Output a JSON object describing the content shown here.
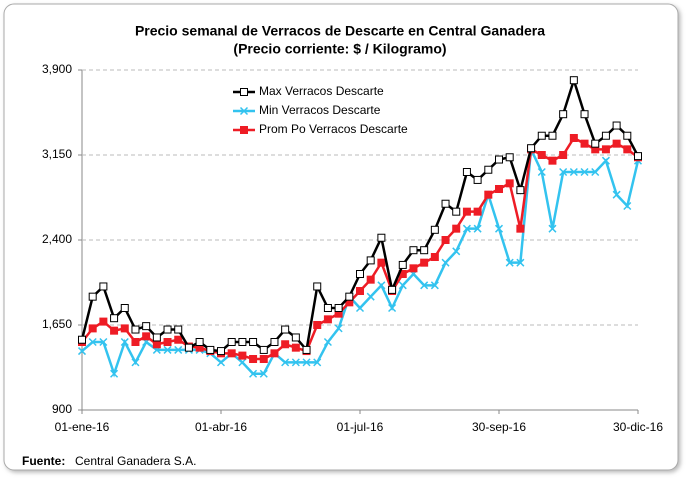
{
  "chart_data": {
    "type": "line",
    "title": "Precio semanal de Verracos de Descarte en Central Ganadera",
    "subtitle": "(Precio corriente: $ / Kilogramo)",
    "source_label": "Fuente:",
    "source": "Central Ganadera S.A.",
    "categories": [
      "01-ene-16",
      null,
      null,
      null,
      null,
      null,
      null,
      null,
      null,
      null,
      null,
      null,
      null,
      "01-abr-16",
      null,
      null,
      null,
      null,
      null,
      null,
      null,
      null,
      null,
      null,
      null,
      null,
      "01-jul-16",
      null,
      null,
      null,
      null,
      null,
      null,
      null,
      null,
      null,
      null,
      null,
      null,
      "30-sep-16",
      null,
      null,
      null,
      null,
      null,
      null,
      null,
      null,
      null,
      null,
      null,
      null,
      "30-dic-16"
    ],
    "series": [
      {
        "name": "Max Verracos Descarte",
        "color": "#000000",
        "marker": "square-open",
        "values": [
          1520,
          1900,
          1990,
          1710,
          1800,
          1610,
          1640,
          1540,
          1610,
          1610,
          1450,
          1500,
          1430,
          1420,
          1500,
          1500,
          1500,
          1430,
          1500,
          1610,
          1540,
          1430,
          1990,
          1800,
          1800,
          1900,
          2100,
          2220,
          2420,
          1960,
          2180,
          2310,
          2310,
          2490,
          2720,
          2650,
          3000,
          2930,
          3020,
          3110,
          3130,
          2840,
          3210,
          3320,
          3320,
          3510,
          3810,
          3510,
          3250,
          3320,
          3410,
          3320,
          3140
        ]
      },
      {
        "name": "Min Verracos Descarte",
        "color": "#33c3ef",
        "marker": "x",
        "values": [
          1420,
          1500,
          1500,
          1220,
          1500,
          1320,
          1500,
          1430,
          1430,
          1430,
          1430,
          1430,
          1400,
          1320,
          1400,
          1320,
          1220,
          1220,
          1400,
          1320,
          1320,
          1320,
          1320,
          1500,
          1620,
          1900,
          1800,
          1900,
          2000,
          1800,
          2000,
          2100,
          2000,
          2000,
          2200,
          2300,
          2500,
          2500,
          2800,
          2500,
          2200,
          2200,
          3200,
          3000,
          2500,
          3000,
          3000,
          3000,
          3000,
          3100,
          2800,
          2700,
          3100
        ]
      },
      {
        "name": "Prom Po Verracos Descarte",
        "color": "#ee1c25",
        "marker": "square",
        "values": [
          1500,
          1620,
          1680,
          1600,
          1620,
          1500,
          1550,
          1480,
          1500,
          1520,
          1460,
          1450,
          1420,
          1400,
          1400,
          1380,
          1350,
          1350,
          1400,
          1480,
          1450,
          1420,
          1650,
          1700,
          1750,
          1850,
          1950,
          2050,
          2200,
          1950,
          2100,
          2150,
          2200,
          2250,
          2400,
          2500,
          2650,
          2650,
          2800,
          2850,
          2900,
          2500,
          3200,
          3150,
          3100,
          3150,
          3300,
          3250,
          3200,
          3200,
          3250,
          3200,
          3130
        ]
      }
    ],
    "ylim": [
      900,
      3900
    ],
    "yticks": [
      900,
      {
        "value": 1650,
        "label": "1,650"
      },
      {
        "value": 2400,
        "label": "2,400"
      },
      {
        "value": 3150,
        "label": "3,150"
      },
      {
        "value": 3900,
        "label": "3,900"
      }
    ],
    "grid": true,
    "legend": "top-left"
  }
}
